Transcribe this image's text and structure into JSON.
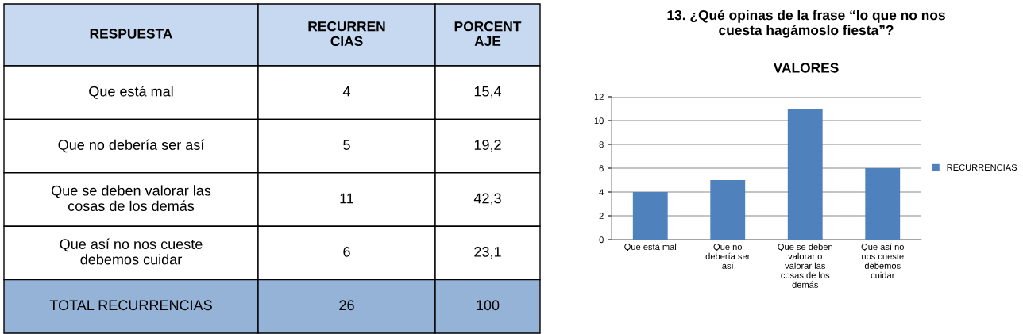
{
  "chart_data": {
    "type": "bar",
    "title": "13. ¿Qué opinas de la frase “lo que no nos\ncuesta hagámoslo fiesta”?",
    "subtitle": "VALORES",
    "categories": [
      "Que está mal",
      "Que no\ndebería ser\nasí",
      "Que se deben\nvalorar o\nvalorar las\ncosas de los\ndemás",
      "Que así no\nnos cueste\ndebemos\ncuidar"
    ],
    "series": [
      {
        "name": "RECURRENCIAS",
        "color": "#4f81bd",
        "values": [
          4,
          5,
          11,
          6
        ]
      }
    ],
    "ylim": [
      0,
      12
    ],
    "yticks": [
      0,
      2,
      4,
      6,
      8,
      10,
      12
    ],
    "grid": "y",
    "legend": "right",
    "annotations": [
      "RESPUESTA",
      "RECURREN\nCIAS",
      "PORCENT\nAJE",
      "Que está mal",
      "4",
      "15,4",
      "Que no debería ser así",
      "5",
      "19,2",
      "Que se deben valorar las\ncosas de los demás",
      "11",
      "42,3",
      "Que así no nos cueste\ndebemos cuidar",
      "6",
      "23,1",
      "TOTAL RECURRENCIAS",
      "26",
      "100"
    ]
  }
}
